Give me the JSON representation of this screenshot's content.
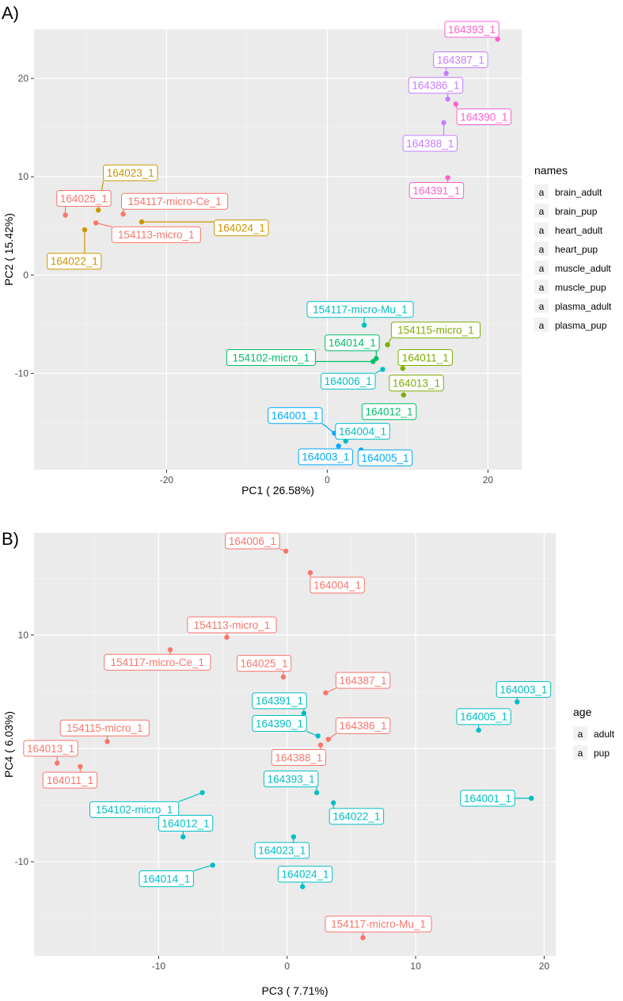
{
  "chart_data": [
    {
      "panel": "A)",
      "type": "scatter",
      "xlabel": "PC1 ( 26.58%)",
      "ylabel": "PC2 ( 15.42%)",
      "xlim": [
        -36.5,
        24.2
      ],
      "ylim": [
        -19.8,
        25.0
      ],
      "xticks": [
        -20,
        0,
        20
      ],
      "xtick_labels": [
        "-20",
        "0",
        "20"
      ],
      "yticks": [
        -10,
        0,
        10,
        20
      ],
      "ytick_labels": [
        "-10",
        "0",
        "10",
        "20"
      ],
      "grid": true,
      "legend_title": "names",
      "legend_position": "right",
      "legend_marker": "a",
      "groups": [
        {
          "name": "brain_adult",
          "color": "#F8766D"
        },
        {
          "name": "brain_pup",
          "color": "#CD9600"
        },
        {
          "name": "heart_adult",
          "color": "#7CAE00"
        },
        {
          "name": "heart_pup",
          "color": "#00BE67"
        },
        {
          "name": "muscle_adult",
          "color": "#00BFC4"
        },
        {
          "name": "muscle_pup",
          "color": "#00A9FF"
        },
        {
          "name": "plasma_adult",
          "color": "#C77CFF"
        },
        {
          "name": "plasma_pup",
          "color": "#FF61CC"
        }
      ],
      "points": [
        {
          "label": "164393_1",
          "x": 21.2,
          "y": 24.0,
          "group": "plasma_pup",
          "lx": 18.0,
          "ly": 25.0
        },
        {
          "label": "164387_1",
          "x": 14.8,
          "y": 20.5,
          "group": "plasma_adult",
          "lx": 16.6,
          "ly": 21.9
        },
        {
          "label": "164386_1",
          "x": 15.0,
          "y": 17.9,
          "group": "plasma_adult",
          "lx": 13.5,
          "ly": 19.3
        },
        {
          "label": "164390_1",
          "x": 16.0,
          "y": 17.4,
          "group": "plasma_pup",
          "lx": 19.5,
          "ly": 16.1
        },
        {
          "label": "164388_1",
          "x": 14.5,
          "y": 15.5,
          "group": "plasma_adult",
          "lx": 12.8,
          "ly": 13.4
        },
        {
          "label": "164391_1",
          "x": 15.0,
          "y": 9.9,
          "group": "plasma_pup",
          "lx": 13.6,
          "ly": 8.6
        },
        {
          "label": "164023_1",
          "x": -28.5,
          "y": 6.6,
          "group": "brain_pup",
          "lx": -24.5,
          "ly": 10.4
        },
        {
          "label": "164025_1",
          "x": -32.6,
          "y": 6.1,
          "group": "brain_adult",
          "lx": -30.3,
          "ly": 7.8
        },
        {
          "label": "154117-micro-Ce_1",
          "x": -25.4,
          "y": 6.2,
          "group": "brain_adult",
          "lx": -19.0,
          "ly": 7.5
        },
        {
          "label": "154113-micro_1",
          "x": -28.8,
          "y": 5.3,
          "group": "brain_adult",
          "lx": -21.3,
          "ly": 4.1
        },
        {
          "label": "164024_1",
          "x": -23.1,
          "y": 5.4,
          "group": "brain_pup",
          "lx": -10.7,
          "ly": 4.8
        },
        {
          "label": "164022_1",
          "x": -30.2,
          "y": 4.6,
          "group": "brain_pup",
          "lx": -31.5,
          "ly": 1.4
        },
        {
          "label": "154117-micro-Mu_1",
          "x": 4.6,
          "y": -5.1,
          "group": "muscle_adult",
          "lx": 4.1,
          "ly": -3.5
        },
        {
          "label": "154115-micro_1",
          "x": 7.5,
          "y": -7.1,
          "group": "heart_adult",
          "lx": 13.5,
          "ly": -5.6
        },
        {
          "label": "164014_1",
          "x": 6.1,
          "y": -8.5,
          "group": "heart_pup",
          "lx": 3.1,
          "ly": -6.9
        },
        {
          "label": "154102-micro_1",
          "x": 5.7,
          "y": -8.8,
          "group": "heart_pup",
          "lx": -7.0,
          "ly": -8.4
        },
        {
          "label": "164011_1",
          "x": 9.4,
          "y": -9.5,
          "group": "heart_adult",
          "lx": 12.2,
          "ly": -8.4
        },
        {
          "label": "164006_1",
          "x": 6.9,
          "y": -9.6,
          "group": "muscle_adult",
          "lx": 2.6,
          "ly": -10.8
        },
        {
          "label": "164013_1",
          "x": 9.5,
          "y": -12.2,
          "group": "heart_adult",
          "lx": 11.1,
          "ly": -11.0
        },
        {
          "label": "164012_1",
          "x": 6.9,
          "y": -14.4,
          "group": "heart_pup",
          "lx": 7.7,
          "ly": -13.9
        },
        {
          "label": "164001_1",
          "x": 0.9,
          "y": -16.1,
          "group": "muscle_pup",
          "lx": -4.0,
          "ly": -14.3
        },
        {
          "label": "164004_1",
          "x": 2.3,
          "y": -16.9,
          "group": "muscle_adult",
          "lx": 4.4,
          "ly": -15.9
        },
        {
          "label": "164003_1",
          "x": 1.4,
          "y": -17.4,
          "group": "muscle_pup",
          "lx": -0.2,
          "ly": -18.5
        },
        {
          "label": "164005_1",
          "x": 4.2,
          "y": -17.8,
          "group": "muscle_pup",
          "lx": 7.2,
          "ly": -18.6
        }
      ]
    },
    {
      "panel": "B)",
      "type": "scatter",
      "xlabel": "PC3 ( 7.71%)",
      "ylabel": "PC4 ( 6.03%)",
      "xlim": [
        -19.7,
        20.9
      ],
      "ylim": [
        -18.3,
        19.0
      ],
      "xticks": [
        -10,
        0,
        10,
        20
      ],
      "xtick_labels": [
        "-10",
        "0",
        "10",
        "20"
      ],
      "yticks": [
        -10,
        0,
        10
      ],
      "ytick_labels": [
        "-10",
        "0",
        "10"
      ],
      "grid": true,
      "legend_title": "age",
      "legend_position": "right",
      "legend_marker": "a",
      "groups": [
        {
          "name": "adult",
          "color": "#F8766D"
        },
        {
          "name": "pup",
          "color": "#00BFC4"
        }
      ],
      "points": [
        {
          "label": "164006_1",
          "x": -0.1,
          "y": 17.4,
          "group": "adult",
          "lx": -2.7,
          "ly": 18.3
        },
        {
          "label": "164004_1",
          "x": 1.8,
          "y": 15.5,
          "group": "adult",
          "lx": 3.9,
          "ly": 14.4
        },
        {
          "label": "154113-micro_1",
          "x": -4.7,
          "y": 9.8,
          "group": "adult",
          "lx": -4.3,
          "ly": 10.9
        },
        {
          "label": "154117-micro-Ce_1",
          "x": -9.1,
          "y": 8.7,
          "group": "adult",
          "lx": -10.1,
          "ly": 7.6
        },
        {
          "label": "164025_1",
          "x": -0.3,
          "y": 6.3,
          "group": "adult",
          "lx": -1.8,
          "ly": 7.5
        },
        {
          "label": "164387_1",
          "x": 3.0,
          "y": 4.9,
          "group": "adult",
          "lx": 5.9,
          "ly": 6.0
        },
        {
          "label": "164391_1",
          "x": 1.3,
          "y": 3.1,
          "group": "pup",
          "lx": -0.6,
          "ly": 4.2
        },
        {
          "label": "164390_1",
          "x": 2.4,
          "y": 1.1,
          "group": "pup",
          "lx": -0.6,
          "ly": 2.2
        },
        {
          "label": "164386_1",
          "x": 3.2,
          "y": 0.8,
          "group": "adult",
          "lx": 5.9,
          "ly": 2.0
        },
        {
          "label": "164388_1",
          "x": 2.6,
          "y": 0.3,
          "group": "adult",
          "lx": 0.9,
          "ly": -0.8
        },
        {
          "label": "154115-micro_1",
          "x": -14.0,
          "y": 0.6,
          "group": "adult",
          "lx": -14.2,
          "ly": 1.8
        },
        {
          "label": "164013_1",
          "x": -17.9,
          "y": -1.3,
          "group": "adult",
          "lx": -18.4,
          "ly": 0.0
        },
        {
          "label": "164011_1",
          "x": -16.1,
          "y": -1.6,
          "group": "adult",
          "lx": -16.9,
          "ly": -2.8
        },
        {
          "label": "164393_1",
          "x": 2.3,
          "y": -3.9,
          "group": "pup",
          "lx": 0.3,
          "ly": -2.7
        },
        {
          "label": "164022_1",
          "x": 3.6,
          "y": -4.8,
          "group": "pup",
          "lx": 5.4,
          "ly": -6.0
        },
        {
          "label": "154102-micro_1",
          "x": -6.6,
          "y": -3.9,
          "group": "pup",
          "lx": -11.9,
          "ly": -5.4
        },
        {
          "label": "164012_1",
          "x": -8.1,
          "y": -7.8,
          "group": "pup",
          "lx": -7.9,
          "ly": -6.6
        },
        {
          "label": "164023_1",
          "x": 0.5,
          "y": -7.8,
          "group": "pup",
          "lx": -0.4,
          "ly": -9.0
        },
        {
          "label": "164014_1",
          "x": -5.8,
          "y": -10.3,
          "group": "pup",
          "lx": -9.4,
          "ly": -11.5
        },
        {
          "label": "164024_1",
          "x": 1.2,
          "y": -12.2,
          "group": "pup",
          "lx": 1.4,
          "ly": -11.1
        },
        {
          "label": "154117-micro-Mu_1",
          "x": 5.9,
          "y": -16.7,
          "group": "adult",
          "lx": 7.1,
          "ly": -15.5
        },
        {
          "label": "164003_1",
          "x": 17.9,
          "y": 4.1,
          "group": "pup",
          "lx": 18.4,
          "ly": 5.2
        },
        {
          "label": "164005_1",
          "x": 14.9,
          "y": 1.6,
          "group": "pup",
          "lx": 15.3,
          "ly": 2.8
        },
        {
          "label": "164001_1",
          "x": 19.0,
          "y": -4.4,
          "group": "pup",
          "lx": 15.6,
          "ly": -4.4
        }
      ]
    }
  ]
}
